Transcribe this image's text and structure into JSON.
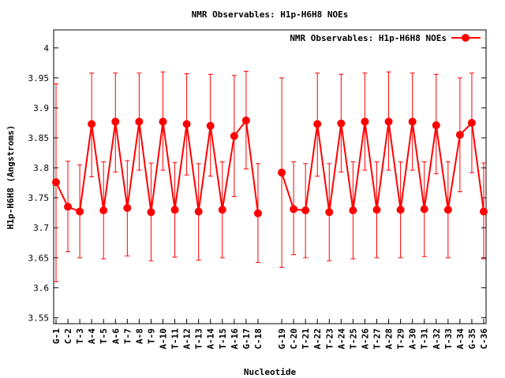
{
  "chart_data": {
    "type": "line",
    "title": "NMR Observables: H1p-H6H8 NOEs",
    "xlabel": "Nucleotide",
    "ylabel": "H1p-H6H8 (Angstroms)",
    "ylim": [
      3.54,
      4.03
    ],
    "yticks": [
      "3.55",
      "3.6",
      "3.65",
      "3.7",
      "3.75",
      "3.8",
      "3.85",
      "3.9",
      "3.95",
      "4"
    ],
    "grid": false,
    "legend_position": "top-right",
    "color": "#ff0000",
    "categories": [
      "G-1",
      "C-2",
      "T-3",
      "A-4",
      "T-5",
      "A-6",
      "T-7",
      "A-8",
      "T-9",
      "A-10",
      "T-11",
      "A-12",
      "T-13",
      "A-14",
      "T-15",
      "A-16",
      "G-17",
      "C-18",
      "G-19",
      "C-20",
      "T-21",
      "A-22",
      "T-23",
      "A-24",
      "T-25",
      "A-26",
      "T-27",
      "A-28",
      "T-29",
      "A-30",
      "T-31",
      "A-32",
      "T-33",
      "A-34",
      "G-35",
      "C-36"
    ],
    "series": [
      {
        "name": "NMR Observables: H1p-H6H8 NOEs",
        "values": [
          3.776,
          3.735,
          3.727,
          3.873,
          3.729,
          3.877,
          3.733,
          3.877,
          3.726,
          3.877,
          3.73,
          3.873,
          3.727,
          3.87,
          3.73,
          3.853,
          3.879,
          3.724,
          3.792,
          3.731,
          3.729,
          3.873,
          3.726,
          3.874,
          3.729,
          3.877,
          3.73,
          3.877,
          3.73,
          3.877,
          3.731,
          3.871,
          3.73,
          3.855,
          3.875,
          3.727
        ],
        "err_low": [
          3.61,
          3.66,
          3.65,
          3.785,
          3.648,
          3.793,
          3.653,
          3.796,
          3.645,
          3.796,
          3.651,
          3.788,
          3.646,
          3.786,
          3.65,
          3.752,
          3.798,
          3.642,
          3.634,
          3.655,
          3.65,
          3.786,
          3.645,
          3.793,
          3.648,
          3.796,
          3.65,
          3.796,
          3.65,
          3.796,
          3.652,
          3.79,
          3.65,
          3.76,
          3.792,
          3.648
        ],
        "err_high": [
          3.94,
          3.811,
          3.805,
          3.958,
          3.81,
          3.958,
          3.812,
          3.958,
          3.808,
          3.96,
          3.809,
          3.957,
          3.807,
          3.956,
          3.81,
          3.954,
          3.961,
          3.807,
          3.95,
          3.81,
          3.807,
          3.958,
          3.807,
          3.956,
          3.81,
          3.958,
          3.81,
          3.96,
          3.81,
          3.958,
          3.81,
          3.956,
          3.81,
          3.95,
          3.958,
          3.808
        ],
        "gap_after": [
          "C-18"
        ]
      }
    ]
  }
}
